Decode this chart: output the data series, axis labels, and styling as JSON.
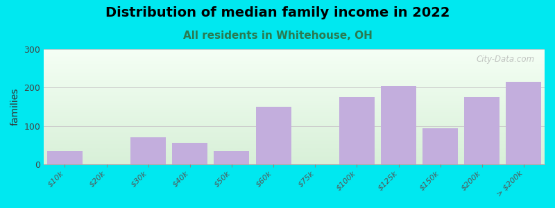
{
  "title": "Distribution of median family income in 2022",
  "subtitle": "All residents in Whitehouse, OH",
  "ylabel": "families",
  "watermark": "City-Data.com",
  "categories": [
    "$10k",
    "$20k",
    "$30k",
    "$40k",
    "$50k",
    "$60k",
    "$75k",
    "$100k",
    "$125k",
    "$150k",
    "$200k",
    "> $200k"
  ],
  "values": [
    35,
    0,
    70,
    57,
    35,
    150,
    0,
    175,
    205,
    95,
    175,
    215
  ],
  "bar_color": "#c3aedd",
  "bg_outer": "#00e8f0",
  "plot_bg_top": "#f5fff5",
  "plot_bg_bottom": "#d8f0d8",
  "ylim": [
    0,
    300
  ],
  "yticks": [
    0,
    100,
    200,
    300
  ],
  "title_fontsize": 14,
  "subtitle_fontsize": 11,
  "subtitle_color": "#2a7a50",
  "ylabel_fontsize": 10,
  "tick_fontsize": 8
}
